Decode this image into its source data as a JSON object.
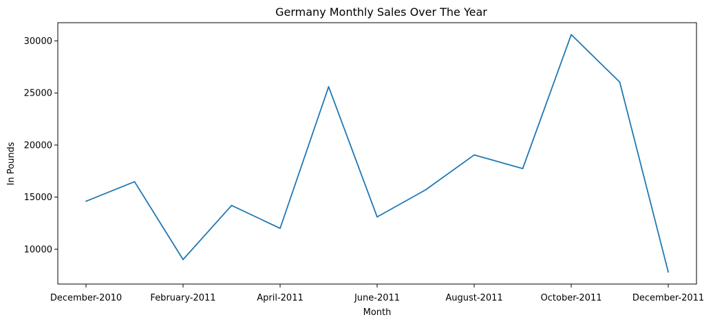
{
  "chart_data": {
    "type": "line",
    "title": "Germany Monthly Sales Over The Year",
    "xlabel": "Month",
    "ylabel": "In Pounds",
    "x": [
      "December-2010",
      "January-2011",
      "February-2011",
      "March-2011",
      "April-2011",
      "May-2011",
      "June-2011",
      "July-2011",
      "August-2011",
      "September-2011",
      "October-2011",
      "November-2011",
      "December-2011"
    ],
    "x_tick_labels": [
      "December-2010",
      "February-2011",
      "April-2011",
      "June-2011",
      "August-2011",
      "October-2011",
      "December-2011"
    ],
    "y_ticks": [
      "10000",
      "15000",
      "20000",
      "25000",
      "30000"
    ],
    "ylim": [
      6650,
      31750
    ],
    "grid": false,
    "series": [
      {
        "values": [
          14600,
          16480,
          9000,
          14200,
          12000,
          25600,
          13100,
          15700,
          19050,
          17740,
          30600,
          26040,
          7800
        ]
      }
    ],
    "colors": {
      "line": "#1f77b4",
      "axes": "#000000",
      "background": "#ffffff"
    }
  }
}
